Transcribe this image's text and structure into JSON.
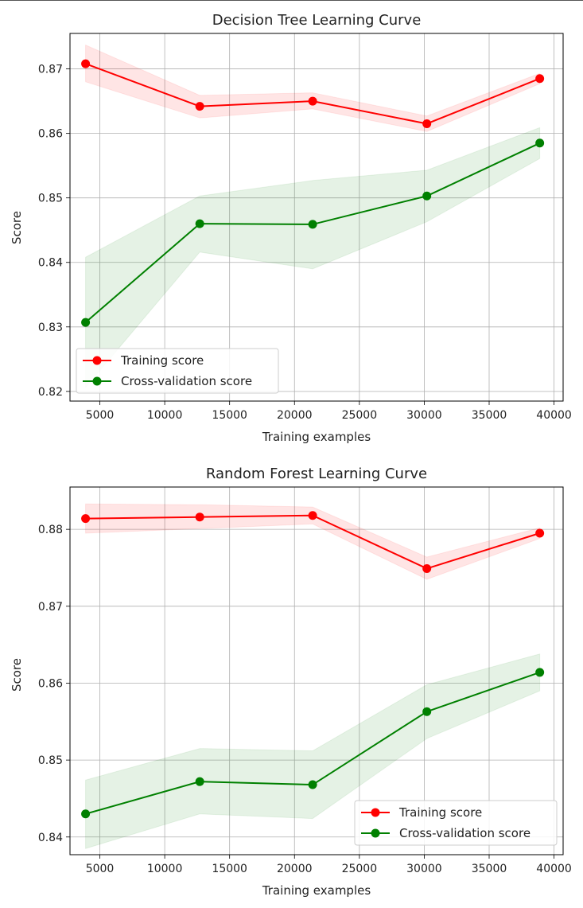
{
  "chart_data": [
    {
      "type": "line",
      "title": "Decision Tree Learning Curve",
      "xlabel": "Training examples",
      "ylabel": "Score",
      "xlim": [
        2700,
        40700
      ],
      "ylim": [
        0.8185,
        0.8755
      ],
      "xticks": [
        5000,
        10000,
        15000,
        20000,
        25000,
        30000,
        35000,
        40000
      ],
      "yticks": [
        0.82,
        0.83,
        0.84,
        0.85,
        0.86,
        0.87
      ],
      "ytick_decimals": 2,
      "grid": true,
      "legend_loc": "lower left",
      "x": [
        3900,
        12700,
        21400,
        30200,
        38900
      ],
      "series": [
        {
          "name": "Training score",
          "color": "#ff0000",
          "fill": "#ff0000",
          "values": [
            0.8708,
            0.8642,
            0.865,
            0.8615,
            0.8685
          ],
          "upper": [
            0.8737,
            0.8659,
            0.8663,
            0.8627,
            0.8693
          ],
          "lower": [
            0.868,
            0.8624,
            0.8638,
            0.8603,
            0.8677
          ]
        },
        {
          "name": "Cross-validation score",
          "color": "#008000",
          "fill": "#008000",
          "values": [
            0.8307,
            0.846,
            0.8459,
            0.8503,
            0.8585
          ],
          "upper": [
            0.8408,
            0.8503,
            0.8527,
            0.8543,
            0.8609
          ],
          "lower": [
            0.8206,
            0.8416,
            0.839,
            0.8463,
            0.8561
          ]
        }
      ]
    },
    {
      "type": "line",
      "title": "Random Forest Learning Curve",
      "xlabel": "Training examples",
      "ylabel": "Score",
      "xlim": [
        2700,
        40700
      ],
      "ylim": [
        0.8377,
        0.8855
      ],
      "xticks": [
        5000,
        10000,
        15000,
        20000,
        25000,
        30000,
        35000,
        40000
      ],
      "yticks": [
        0.84,
        0.85,
        0.86,
        0.87,
        0.88
      ],
      "ytick_decimals": 2,
      "grid": true,
      "legend_loc": "lower right",
      "x": [
        3900,
        12700,
        21400,
        30200,
        38900
      ],
      "series": [
        {
          "name": "Training score",
          "color": "#ff0000",
          "fill": "#ff0000",
          "values": [
            0.8814,
            0.8816,
            0.8818,
            0.8749,
            0.8795
          ],
          "upper": [
            0.8833,
            0.8832,
            0.8829,
            0.8764,
            0.8802
          ],
          "lower": [
            0.8795,
            0.8801,
            0.8807,
            0.8735,
            0.8788
          ]
        },
        {
          "name": "Cross-validation score",
          "color": "#008000",
          "fill": "#008000",
          "values": [
            0.843,
            0.8472,
            0.8468,
            0.8563,
            0.8614
          ],
          "upper": [
            0.8474,
            0.8515,
            0.8512,
            0.8598,
            0.8638
          ],
          "lower": [
            0.8385,
            0.843,
            0.8424,
            0.8528,
            0.859
          ]
        }
      ]
    }
  ]
}
